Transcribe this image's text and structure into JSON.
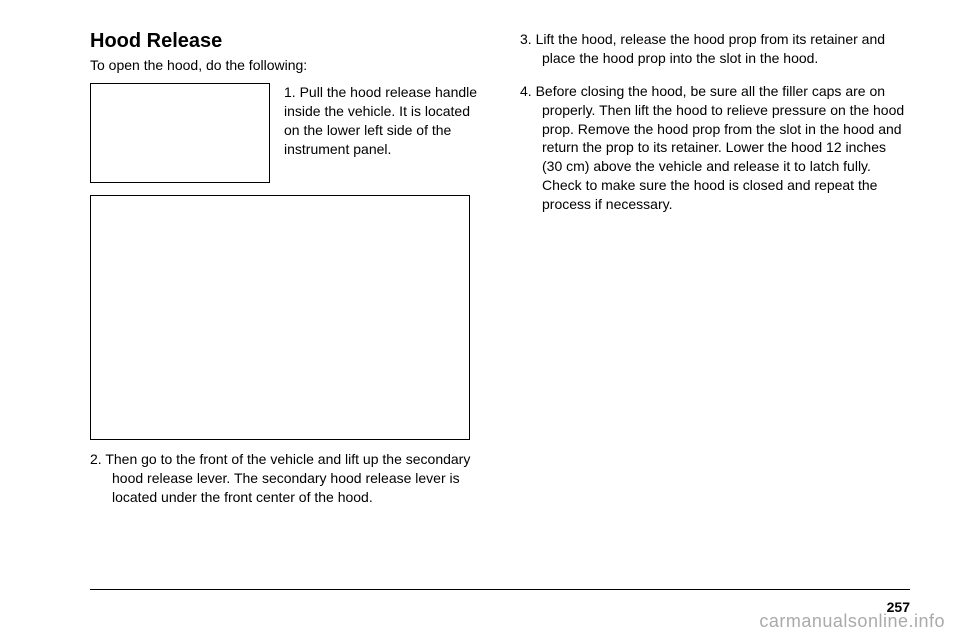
{
  "title": "Hood Release",
  "intro": "To open the hood, do the following:",
  "step1_num": "1.",
  "step1_text": "Pull the hood release handle inside the vehicle. It is located on the lower left side of the instrument panel.",
  "step2_num": "2.",
  "step2_text": "Then go to the front of the vehicle and lift up the secondary hood release lever. The secondary hood release lever is located under the front center of the hood.",
  "step3_num": "3.",
  "step3_text": "Lift the hood, release the hood prop from its retainer and place the hood prop into the slot in the hood.",
  "step4_num": "4.",
  "step4_text": "Before closing the hood, be sure all the filler caps are on properly. Then lift the hood to relieve pressure on the hood prop. Remove the hood prop from the slot in the hood and return the prop to its retainer. Lower the hood 12 inches (30 cm) above the vehicle and release it to latch fully. Check to make sure the hood is closed and repeat the process if necessary.",
  "page_number": "257",
  "watermark": "carmanualsonline.info"
}
